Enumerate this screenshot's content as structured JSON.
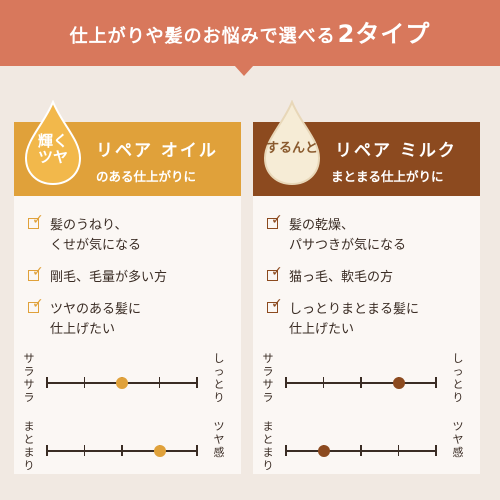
{
  "banner": {
    "text_main": "仕上がりや髪のお悩みで選べる",
    "text_emph": "2タイプ"
  },
  "colors": {
    "banner": "#d8785c",
    "oil_accent": "#e0a13a",
    "milk_accent": "#8c4a1f",
    "background": "#f1e9e2"
  },
  "cards": [
    {
      "drop_text_1": "輝く",
      "drop_text_2": "ツヤ",
      "title": "リペア オイル",
      "subtitle": "のある仕上がりに",
      "checks": [
        [
          "髪のうねり、",
          "くせが気になる"
        ],
        [
          "剛毛、毛量が多い方"
        ],
        [
          "ツヤのある髪に",
          "仕上げたい"
        ]
      ],
      "scales": [
        {
          "left_label": "サラサラ",
          "right_label": "しっとり",
          "value": 0.5
        },
        {
          "left_label": "まとまり",
          "right_label": "ツヤ感",
          "value": 0.75
        }
      ]
    },
    {
      "drop_text_1": "するんと",
      "drop_text_2": "",
      "title": "リペア ミルク",
      "subtitle": "まとまる仕上がりに",
      "checks": [
        [
          "髪の乾燥、",
          "パサつきが気になる"
        ],
        [
          "猫っ毛、軟毛の方"
        ],
        [
          "しっとりまとまる髪に",
          "仕上げたい"
        ]
      ],
      "scales": [
        {
          "left_label": "サラサラ",
          "right_label": "しっとり",
          "value": 0.75
        },
        {
          "left_label": "まとまり",
          "right_label": "ツヤ感",
          "value": 0.25
        }
      ]
    }
  ]
}
